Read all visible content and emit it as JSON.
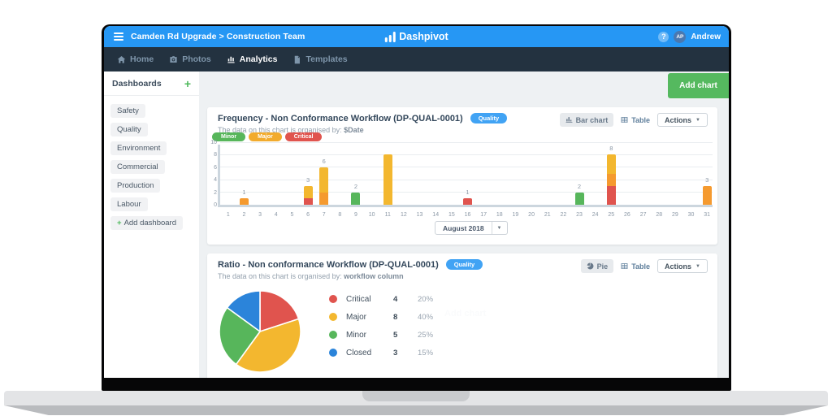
{
  "topbar": {
    "breadcrumb": "Camden Rd Upgrade > Construction Team",
    "logo_text": "Dashpivot",
    "help_icon": "?",
    "avatar_initials": "AP",
    "user_name": "Andrew"
  },
  "nav": {
    "items": [
      {
        "label": "Home"
      },
      {
        "label": "Photos"
      },
      {
        "label": "Analytics",
        "active": true
      },
      {
        "label": "Templates"
      }
    ]
  },
  "sidebar": {
    "title": "Dashboards",
    "add_icon": "+",
    "items": [
      "Safety",
      "Quality",
      "Environment",
      "Commercial",
      "Production",
      "Labour"
    ],
    "add_label": "Add dashboard"
  },
  "toolbar": {
    "add_chart_label": "Add chart"
  },
  "frequency_card": {
    "title": "Frequency - Non Conformance Workflow (DP-QUAL-0001)",
    "badge": "Quality",
    "organised_prefix": "The data on this chart is organised by: ",
    "organised_field": "$Date",
    "chart_type_button": "Bar chart",
    "table_button": "Table",
    "actions_button": "Actions",
    "month_select": "August 2018"
  },
  "ratio_card": {
    "title": "Ratio - Non conformance Workflow (DP-QUAL-0001)",
    "badge": "Quality",
    "organised_prefix": "The data on this chart is organised by: ",
    "organised_field": "workflow column",
    "chart_type_button": "Pie",
    "table_button": "Table",
    "actions_button": "Actions",
    "ghost_text": "Add chart"
  },
  "chart_data": [
    {
      "type": "bar",
      "stacked": true,
      "title": "Frequency - Non Conformance Workflow (DP-QUAL-0001)",
      "period": "August 2018",
      "x_ticks": [
        1,
        2,
        3,
        4,
        5,
        6,
        7,
        8,
        9,
        10,
        11,
        12,
        13,
        14,
        15,
        16,
        17,
        18,
        19,
        20,
        21,
        22,
        23,
        24,
        25,
        26,
        27,
        28,
        29,
        30,
        31
      ],
      "ylim": [
        0,
        10
      ],
      "y_ticks": [
        0,
        2,
        4,
        6,
        8,
        10
      ],
      "grid": true,
      "legend": [
        {
          "label": "Minor",
          "color": "#57b65b"
        },
        {
          "label": "Major",
          "color": "#f2ab2d"
        },
        {
          "label": "Critical",
          "color": "#e0544e"
        }
      ],
      "palette": {
        "red": "#e0544e",
        "orange": "#f59a2f",
        "yellow": "#f3b72f",
        "green": "#57b65b"
      },
      "bars": [
        {
          "day": 2,
          "label": "1",
          "segments": [
            {
              "color": "orange",
              "value": 1
            }
          ]
        },
        {
          "day": 6,
          "label": "3",
          "segments": [
            {
              "color": "red",
              "value": 1
            },
            {
              "color": "yellow",
              "value": 2
            }
          ]
        },
        {
          "day": 7,
          "label": "6",
          "segments": [
            {
              "color": "orange",
              "value": 2
            },
            {
              "color": "yellow",
              "value": 4
            }
          ]
        },
        {
          "day": 9,
          "label": "2",
          "segments": [
            {
              "color": "green",
              "value": 2
            }
          ]
        },
        {
          "day": 11,
          "label": "",
          "segments": [
            {
              "color": "yellow",
              "value": 8
            }
          ]
        },
        {
          "day": 16,
          "label": "1",
          "segments": [
            {
              "color": "red",
              "value": 1
            }
          ]
        },
        {
          "day": 23,
          "label": "2",
          "segments": [
            {
              "color": "green",
              "value": 2
            }
          ]
        },
        {
          "day": 25,
          "label": "8",
          "segments": [
            {
              "color": "red",
              "value": 3
            },
            {
              "color": "orange",
              "value": 2
            },
            {
              "color": "yellow",
              "value": 3
            }
          ]
        },
        {
          "day": 31,
          "label": "3",
          "segments": [
            {
              "color": "orange",
              "value": 3
            }
          ]
        }
      ]
    },
    {
      "type": "pie",
      "title": "Ratio - Non conformance Workflow (DP-QUAL-0001)",
      "start": "top",
      "direction": "clockwise",
      "slices": [
        {
          "label": "Critical",
          "value": 4,
          "pct": "20%",
          "color": "#e0544e"
        },
        {
          "label": "Major",
          "value": 8,
          "pct": "40%",
          "color": "#f3b72f"
        },
        {
          "label": "Minor",
          "value": 5,
          "pct": "25%",
          "color": "#57b65b"
        },
        {
          "label": "Closed",
          "value": 3,
          "pct": "15%",
          "color": "#2b84da"
        }
      ]
    }
  ]
}
